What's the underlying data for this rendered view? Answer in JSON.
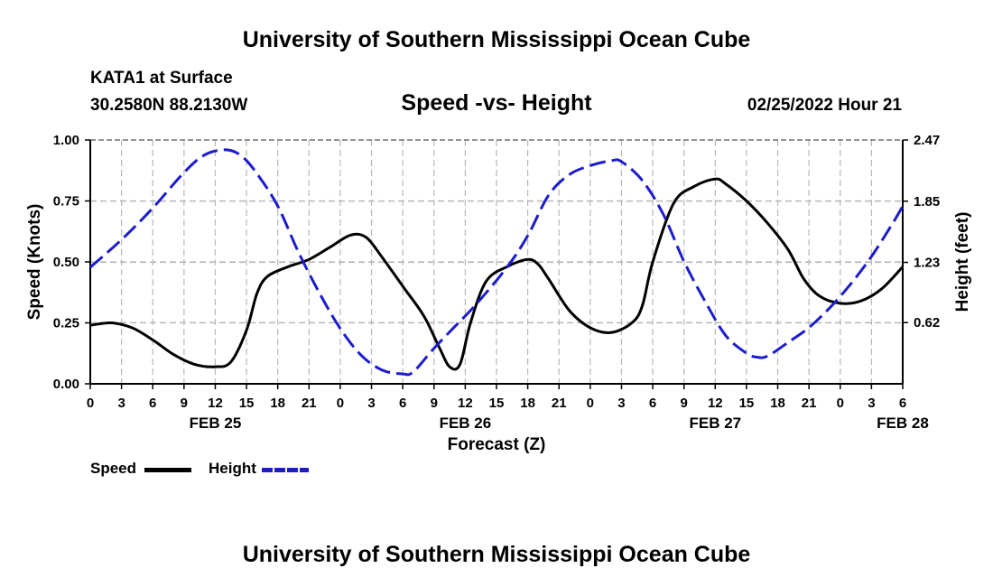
{
  "header": {
    "title": "University of Southern Mississippi Ocean Cube",
    "station": "KATA1 at Surface",
    "coords": "30.2580N  88.2130W",
    "datetime": "02/25/2022 Hour 21"
  },
  "footer": {
    "title": "University of Southern Mississippi Ocean Cube"
  },
  "chart_data": {
    "type": "line",
    "title": "Speed -vs- Height",
    "xlabel": "Forecast (Z)",
    "ylabel_left": "Speed (Knots)",
    "ylabel_right": "Height (feet)",
    "x_range_hours": [
      0,
      78
    ],
    "y_left_range": [
      0,
      1.0
    ],
    "y_right_range": [
      0,
      2.47
    ],
    "y_left_ticks": [
      "0.00",
      "0.25",
      "0.50",
      "0.75",
      "1.00"
    ],
    "y_right_ticks": [
      "0.62",
      "1.23",
      "1.85",
      "2.47"
    ],
    "x_tick_labels": [
      "0",
      "3",
      "6",
      "9",
      "12",
      "15",
      "18",
      "21",
      "0",
      "3",
      "6",
      "9",
      "12",
      "15",
      "18",
      "21",
      "0",
      "3",
      "6",
      "9",
      "12",
      "15",
      "18",
      "21",
      "0",
      "3",
      "6"
    ],
    "date_labels": [
      {
        "label": "FEB 25",
        "hour": 12
      },
      {
        "label": "FEB 26",
        "hour": 36
      },
      {
        "label": "FEB 27",
        "hour": 60
      },
      {
        "label": "FEB 28",
        "hour": 78
      }
    ],
    "grid": true,
    "legend_position": "bottom-left",
    "series": [
      {
        "name": "Speed",
        "axis": "left",
        "color": "#000000",
        "style": "solid",
        "points": [
          [
            0,
            0.24
          ],
          [
            2,
            0.25
          ],
          [
            4,
            0.23
          ],
          [
            6,
            0.18
          ],
          [
            8,
            0.12
          ],
          [
            10,
            0.08
          ],
          [
            12,
            0.07
          ],
          [
            13.5,
            0.09
          ],
          [
            15,
            0.22
          ],
          [
            16,
            0.37
          ],
          [
            17,
            0.44
          ],
          [
            19,
            0.48
          ],
          [
            21,
            0.51
          ],
          [
            23,
            0.56
          ],
          [
            25,
            0.61
          ],
          [
            26.5,
            0.6
          ],
          [
            28,
            0.52
          ],
          [
            30,
            0.4
          ],
          [
            32,
            0.28
          ],
          [
            33.5,
            0.15
          ],
          [
            34.5,
            0.07
          ],
          [
            35.5,
            0.08
          ],
          [
            36.5,
            0.25
          ],
          [
            38,
            0.42
          ],
          [
            40,
            0.48
          ],
          [
            42,
            0.51
          ],
          [
            43,
            0.49
          ],
          [
            44,
            0.43
          ],
          [
            46,
            0.3
          ],
          [
            48,
            0.23
          ],
          [
            50,
            0.21
          ],
          [
            52,
            0.25
          ],
          [
            53,
            0.32
          ],
          [
            54,
            0.5
          ],
          [
            56,
            0.74
          ],
          [
            58,
            0.81
          ],
          [
            60,
            0.84
          ],
          [
            61,
            0.82
          ],
          [
            63,
            0.75
          ],
          [
            65,
            0.66
          ],
          [
            67,
            0.55
          ],
          [
            68.5,
            0.43
          ],
          [
            70,
            0.36
          ],
          [
            72,
            0.33
          ],
          [
            74,
            0.34
          ],
          [
            76,
            0.39
          ],
          [
            78,
            0.48
          ]
        ]
      },
      {
        "name": "Height",
        "axis": "right",
        "color": "#1c1ccc",
        "style": "dashed",
        "points": [
          [
            0,
            1.18
          ],
          [
            3,
            1.46
          ],
          [
            6,
            1.78
          ],
          [
            9,
            2.14
          ],
          [
            11,
            2.32
          ],
          [
            13,
            2.37
          ],
          [
            14.5,
            2.31
          ],
          [
            16,
            2.13
          ],
          [
            18,
            1.8
          ],
          [
            20,
            1.33
          ],
          [
            22,
            0.92
          ],
          [
            24,
            0.56
          ],
          [
            26,
            0.29
          ],
          [
            28,
            0.14
          ],
          [
            30,
            0.1
          ],
          [
            31,
            0.12
          ],
          [
            33,
            0.36
          ],
          [
            35,
            0.58
          ],
          [
            37,
            0.8
          ],
          [
            40,
            1.18
          ],
          [
            42,
            1.5
          ],
          [
            44,
            1.91
          ],
          [
            46,
            2.12
          ],
          [
            48,
            2.21
          ],
          [
            50,
            2.26
          ],
          [
            51,
            2.25
          ],
          [
            53,
            2.06
          ],
          [
            55,
            1.72
          ],
          [
            57,
            1.24
          ],
          [
            59,
            0.84
          ],
          [
            61,
            0.49
          ],
          [
            63,
            0.31
          ],
          [
            64,
            0.27
          ],
          [
            65,
            0.28
          ],
          [
            67,
            0.42
          ],
          [
            69,
            0.57
          ],
          [
            71,
            0.77
          ],
          [
            73,
            1.01
          ],
          [
            75,
            1.29
          ],
          [
            77,
            1.62
          ],
          [
            78,
            1.8
          ]
        ]
      }
    ]
  },
  "legend": {
    "speed_label": "Speed",
    "height_label": "Height",
    "speed_color": "#000000",
    "height_color": "#1c1ccc"
  }
}
